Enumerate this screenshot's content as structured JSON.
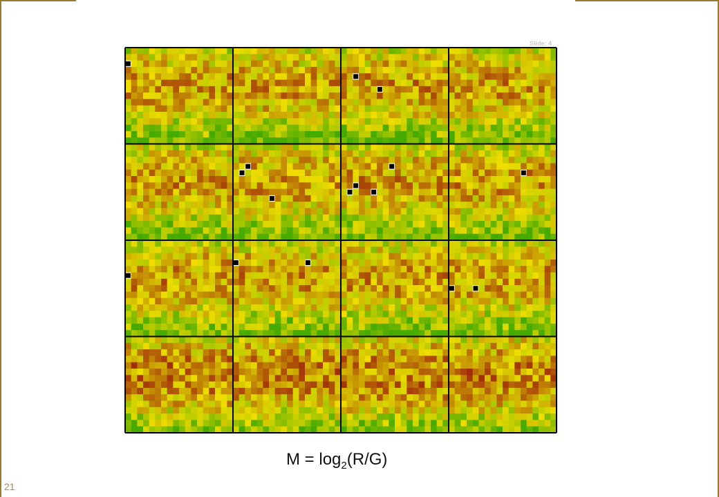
{
  "slide_label": "Slide: 4",
  "page_number": "21",
  "formula": {
    "lhs": "M",
    "equals": "=",
    "fn": "log",
    "base": "2",
    "open": "(",
    "num": "R",
    "slash": "/",
    "den": "G",
    "close": ")"
  },
  "colors": {
    "accent_band": "#9a7a2e",
    "page_number": "#b08a3e",
    "grid_border": "#000000"
  },
  "chart_data": {
    "type": "heatmap",
    "title": "",
    "xlabel": "",
    "ylabel": "",
    "grid_rows": 4,
    "grid_cols": 4,
    "spots_per_block": [
      15,
      18
    ],
    "color_scale": [
      "green",
      "yellow",
      "red"
    ],
    "missing_color": "black",
    "missing_spots": [
      {
        "block_row": 1,
        "block_col": 1,
        "row": 3,
        "col": 1
      },
      {
        "block_row": 1,
        "block_col": 3,
        "row": 5,
        "col": 3
      },
      {
        "block_row": 1,
        "block_col": 3,
        "row": 7,
        "col": 7
      },
      {
        "block_row": 2,
        "block_col": 2,
        "row": 4,
        "col": 3
      },
      {
        "block_row": 2,
        "block_col": 2,
        "row": 5,
        "col": 2
      },
      {
        "block_row": 2,
        "block_col": 2,
        "row": 9,
        "col": 7
      },
      {
        "block_row": 2,
        "block_col": 3,
        "row": 4,
        "col": 9
      },
      {
        "block_row": 2,
        "block_col": 3,
        "row": 7,
        "col": 3
      },
      {
        "block_row": 2,
        "block_col": 3,
        "row": 8,
        "col": 2
      },
      {
        "block_row": 2,
        "block_col": 3,
        "row": 8,
        "col": 6
      },
      {
        "block_row": 2,
        "block_col": 4,
        "row": 5,
        "col": 13
      },
      {
        "block_row": 3,
        "block_col": 1,
        "row": 6,
        "col": 1
      },
      {
        "block_row": 3,
        "block_col": 2,
        "row": 4,
        "col": 1
      },
      {
        "block_row": 3,
        "block_col": 2,
        "row": 4,
        "col": 13
      },
      {
        "block_row": 3,
        "block_col": 4,
        "row": 8,
        "col": 1
      },
      {
        "block_row": 3,
        "block_col": 4,
        "row": 8,
        "col": 5
      }
    ],
    "legend": "none"
  }
}
